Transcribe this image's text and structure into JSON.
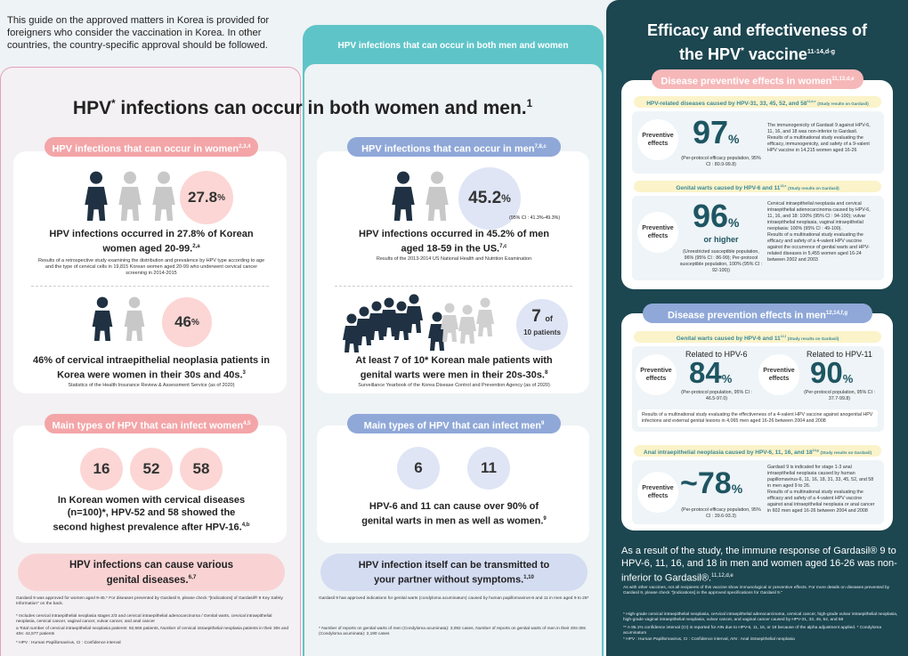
{
  "intro": "This guide on the approved matters in Korea is provided for foreigners who consider the vaccination in Korea. In other countries, the country-specific approval should be followed.",
  "middle_tab": "HPV infections that can occur in both men and women",
  "headline": {
    "part1": "HPV",
    "sup1": "*",
    "part2": " infections can occur in both women and men.",
    "sup2": "1"
  },
  "women": {
    "title": "HPV infections that can occur in women",
    "title_ref": "2,3,4",
    "stat1": {
      "value": "27.8",
      "unit": "%",
      "text": "HPV infections occurred in 27.8% of Korean women aged 20-99.",
      "ref": "2,a",
      "note": "Results of a retrospective study examining the distribution and prevalence by HPV type according to age and the type of cervical cells in 19,815 Korean women aged 20-99 who underwent cervical cancer screening in 2014-2015"
    },
    "stat2": {
      "value": "46",
      "unit": "%",
      "text": "46% of cervical intraepithelial neoplasia patients in Korea were women in their 30s and 40s.",
      "ref": "3",
      "note": "Statistics of the Health Insurance Review & Assessment Service (as of 2020)"
    },
    "types_title": "Main types of HPV that can infect women",
    "types_ref": "4,5",
    "types": [
      "16",
      "52",
      "58"
    ],
    "types_text": "In Korean women with cervical diseases (n=100)*, HPV-52 and 58 showed the second highest prevalence after HPV-16.",
    "types_text_ref": "4,b",
    "bottom": "HPV infections can cause various genital diseases.",
    "bottom_ref": "6,7",
    "footnotes": [
      "Gardasil 9 was approved for women aged 9-45.* For diseases prevented by Gardasil 9, please check \"[Indications] of Gardasil® 9 Key Safety Information\" on the back.",
      "* Includes cervical intraepithelial neoplasia stages 2/3 and cervical intraepithelial adenocarcinoma / Genital warts, cervical intraepithelial neoplasia, cervical cancer, vaginal cancer, vulvar cancer, and anal cancer",
      "a Total number of cervical intraepithelial neoplasia patients: 92,566 patients, Number of cervical intraepithelial neoplasia patients in their 30s and 40s: 42,577 patients",
      "* HPV : Human Papillomavirus, CI : Confidence interval"
    ]
  },
  "men": {
    "title": "HPV infections that can occur in men",
    "title_ref": "7,8,c",
    "stat1": {
      "value": "45.2",
      "unit": "%",
      "ci": "(95% CI : 41.3%-49.3%)",
      "text": "HPV infections occurred in 45.2% of men aged 18-59 in the US.",
      "ref": "7,c",
      "note": "Results of the 2013-2014 US National Health and Nutrition Examination"
    },
    "stat2": {
      "value": "7",
      "of": "of",
      "unit": "10 patients",
      "text": "At least 7 of 10* Korean male patients with genital warts were men in their 20s-30s.",
      "ref": "8",
      "note": "Surveillance Yearbook of the Korea Disease Control and Prevention Agency (as of 2020)"
    },
    "types_title": "Main types of HPV that can infect men",
    "types_ref": "9",
    "types": [
      "6",
      "11"
    ],
    "types_text": "HPV-6 and 11 can cause over 90% of genital warts in men as well as women.",
    "types_text_ref": "9",
    "bottom": "HPV infection itself can be transmitted to your partner without symptoms.",
    "bottom_ref": "1,10",
    "footnotes": [
      "Gardasil 9 has approved indications for genital warts (condyloma acuminatum) caused by human papillomavirus-6 and 11 in men aged 9 to 26*",
      "* Number of reports on genital warts of men (Condyloma acuminata): 3,092 cases, Number of reports on genital warts of men in their 20s-30s (Condyloma acuminata): 2,190 cases"
    ]
  },
  "efficacy": {
    "title1": "Efficacy and effectiveness of",
    "title2": "the HPV",
    "title_sup": "*",
    "title3": " vaccine",
    "title_ref": "11-14,d-g",
    "women_header": "Disease preventive effects in women",
    "women_ref": "11,13,d,e",
    "w1": {
      "sub": "HPV-related diseases caused by HPV-31, 33, 45, 52, and 58",
      "sub_ref": "11,d,e",
      "tag": "(Study results on Gardasil)",
      "label": "Preventive effects",
      "value": "97",
      "unit": "%",
      "ci": "(Per-protocol efficacy population, 95% CI : 80.9-99.8)",
      "notes": [
        "The immunogenicity of Gardasil 9 against HPV-6, 11, 16, and 18 was non-inferior to Gardasil.",
        "Results of a multinational study evaluating the efficacy, immunogenicity, and safety of a 9-valent HPV vaccine in 14,215 women aged 16-26"
      ]
    },
    "w2": {
      "sub": "Genital warts caused by HPV-6 and 11",
      "sub_ref": "13,e",
      "tag": "(Study results on Gardasil)",
      "label": "Preventive effects",
      "value": "96",
      "unit": "%",
      "more": "or higher",
      "ci": "(Unrestricted susceptible population, 96% (95% CI : 86-99); Per-protocol susceptible population, 100% (95% CI : 92-100))",
      "notes": [
        "Cervical intraepithelial neoplasia and cervical intraepithelial adenocarcinoma caused by HPV-6, 11, 16, and 18: 100% (95% CI : 94-100); vulvar intraepithelial neoplasia, vaginal intraepithelial neoplasia: 100% (95% CI : 49-100).",
        "Results of a multinational study evaluating the efficacy and safety of a 4-valent HPV vaccine against the occurrence of genital warts and HPV-related diseases in 5,455 women aged 16-24 between 2002 and 2003"
      ]
    },
    "men_header": "Disease prevention effects in men",
    "men_ref": "12,14,f,g",
    "m1": {
      "sub": "Genital warts caused by HPV-6 and 11",
      "sub_ref": "12,f",
      "tag": "(Study results on Gardasil)",
      "label": "Preventive effects",
      "a": {
        "related": "Related to HPV-6",
        "value": "84",
        "unit": "%",
        "ci": "(Per-protocol population, 95% CI : 46.5-97.0)"
      },
      "b": {
        "related": "Related to HPV-11",
        "value": "90",
        "unit": "%",
        "ci": "(Per-protocol population, 95% CI : 37.7-99.8)"
      },
      "note": "Results of a multinational study evaluating the effectiveness of a 4-valent HPV vaccine against anogenital HPV infections and external genital lesions in 4,065 men aged 16-26 between 2004 and 2008"
    },
    "m2": {
      "sub": "Anal intraepithelial neoplasia caused by HPV-6, 11, 16, and 18",
      "sub_ref": "14,g",
      "tag": "(Study results on Gardasil)",
      "label": "Preventive effects",
      "value": "~78",
      "unit": "%",
      "ci": "(Per-protocol efficacy population, 95% CI : 39.6-93.3)",
      "notes": [
        "Gardasil 9 is indicated for stage 1-3 anal intraepithelial neoplasia caused by human papillomavirus-6, 11, 16, 18, 31, 33, 45, 52, and 58 in men aged 9 to 26.",
        "Results of a multinational study evaluating the efficacy and safety of a 4-valent HPV vaccine against anal intraepithelial neoplasia or anal cancer in 602 men aged 16-26 between 2004 and 2008"
      ]
    },
    "conclusion": "As a result of the study, the immune response of Gardasil® 9 to HPV-6, 11, 16, and 18 in men and women aged 16-26 was non-inferior to Gardasil®.",
    "conclusion_ref": "11,12,d,e",
    "footnotes": [
      "As with other vaccines, not all recipients of this vaccine show immunological or preventive effects. For more details on diseases prevented by Gardasil 9, please check \"[Indications] in the approved specifications for Gardasil 9.\"",
      "* High-grade cervical intraepithelial neoplasia, cervical intraepithelial adenocarcinoma, cervical cancer, high-grade vulvar intraepithelial neoplasia, high-grade vaginal intraepithelial neoplasia, vulvar cancer, and vaginal cancer caused by HPV-31, 33, 45, 52, and 58",
      "** A 95.1% confidence interval (CI) is reported for AIN due to HPV-6, 11, 16, or 18 because of the alpha adjustment applied. * Condyloma acuminatum",
      "* HPV : Human Papillomavirus, CI : Confidence interval, AIN : Anal intraepithelial neoplasia"
    ]
  }
}
